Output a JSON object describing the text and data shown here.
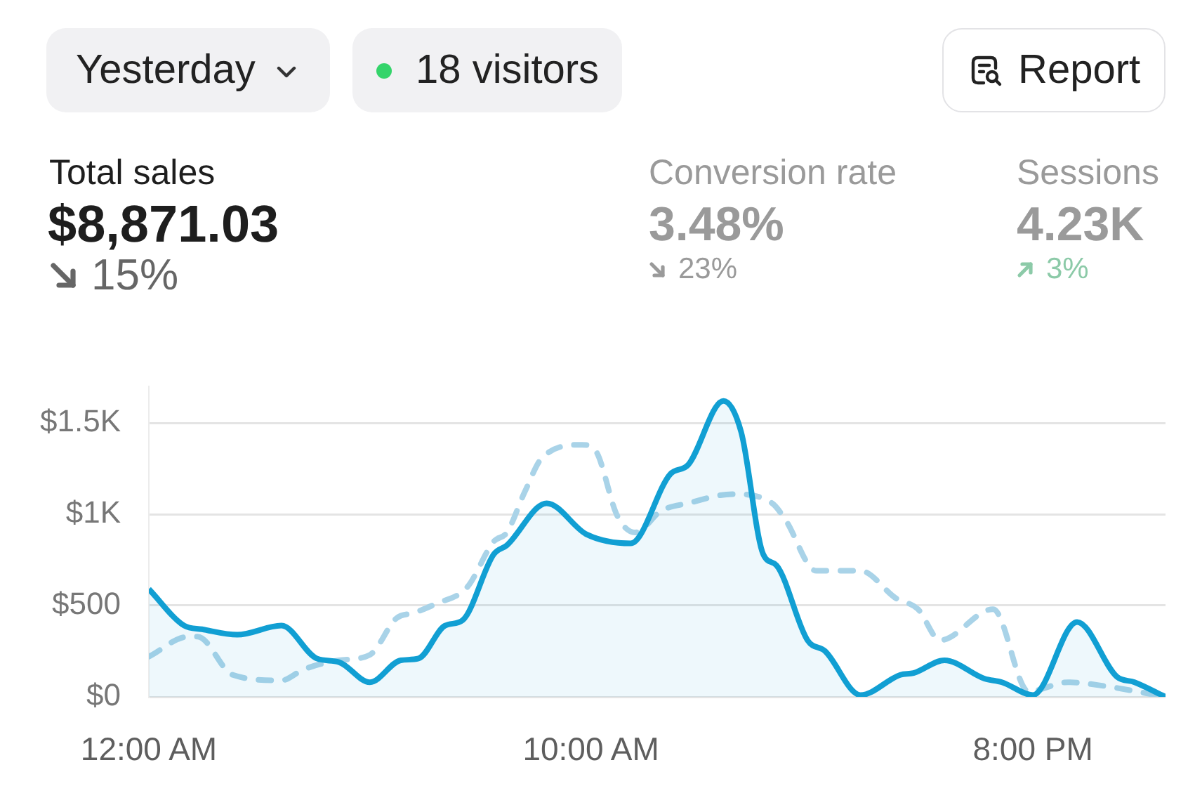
{
  "chart_data": {
    "type": "line",
    "title": "Total sales",
    "subtitle": "$8,871.03",
    "annotations": [
      "Yesterday",
      "18 visitors",
      "Report",
      "15%",
      "Conversion rate",
      "3.48%",
      "23%",
      "Sessions",
      "4.23K",
      "3%"
    ],
    "series": [
      {
        "type": "area",
        "color": "#119fd3",
        "line_style": "solid",
        "x": [
          0,
          0.8,
          1.2,
          2.0,
          3.0,
          3.8,
          4.3,
          5.0,
          5.7,
          6.1,
          6.7,
          7.1,
          7.8,
          8.1,
          9.0,
          9.9,
          10.9,
          11.8,
          12.2,
          13.0,
          13.4,
          13.9,
          14.2,
          14.9,
          15.3,
          16.1,
          17.0,
          17.3,
          18.0,
          18.9,
          19.3,
          20.0,
          21.0,
          21.9,
          22.3,
          23.0
        ],
        "values": [
          590,
          390,
          370,
          340,
          390,
          210,
          190,
          80,
          200,
          210,
          390,
          420,
          780,
          830,
          1060,
          890,
          840,
          1220,
          1270,
          1620,
          1450,
          780,
          720,
          310,
          250,
          10,
          120,
          130,
          200,
          100,
          80,
          10,
          410,
          110,
          80,
          0
        ]
      },
      {
        "type": "line",
        "color": "#a9d3e8",
        "line_style": "dashed",
        "x": [
          0,
          0.9,
          1.1,
          1.9,
          3.0,
          3.5,
          4.3,
          5.0,
          5.6,
          6.0,
          6.5,
          7.2,
          7.8,
          8.1,
          8.5,
          8.9,
          9.8,
          10.1,
          10.6,
          11.0,
          11.6,
          12.2,
          13.2,
          14.1,
          14.4,
          15.1,
          16.1,
          16.9,
          17.4,
          17.9,
          19.1,
          19.9,
          20.8,
          21.6,
          23.0
        ],
        "values": [
          220,
          330,
          330,
          120,
          90,
          150,
          200,
          230,
          430,
          460,
          510,
          600,
          850,
          900,
          1120,
          1310,
          1380,
          1350,
          990,
          900,
          1020,
          1060,
          1110,
          1060,
          970,
          690,
          690,
          540,
          480,
          310,
          480,
          30,
          80,
          60,
          0
        ]
      }
    ],
    "xlim": [
      0,
      23
    ],
    "xticks": [
      {
        "value": 0,
        "label": "12:00 AM"
      },
      {
        "value": 10,
        "label": "10:00 AM"
      },
      {
        "value": 20,
        "label": "8:00 PM"
      }
    ],
    "ylim": [
      0,
      1700
    ],
    "yticks": [
      {
        "value": 0,
        "label": "$0"
      },
      {
        "value": 500,
        "label": "$500"
      },
      {
        "value": 1000,
        "label": "$1K"
      },
      {
        "value": 1500,
        "label": "$1.5K"
      }
    ],
    "grid": "y",
    "legend": false,
    "marker": "none"
  }
}
